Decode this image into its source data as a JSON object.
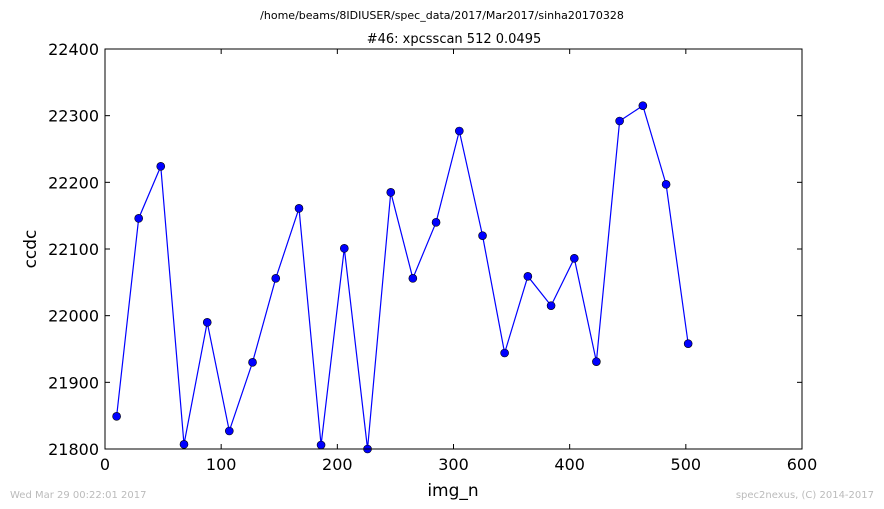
{
  "suptitle": "/home/beams/8IDIUSER/spec_data/2017/Mar2017/sinha20170328",
  "footer": {
    "left": "Wed Mar 29 00:22:01 2017",
    "right": "spec2nexus, (C) 2014-2017"
  },
  "chart_data": {
    "type": "line",
    "title": "#46: xpcsscan 512 0.0495",
    "xlabel": "img_n",
    "ylabel": "ccdc",
    "xlim": [
      0,
      600
    ],
    "ylim": [
      21800,
      22400
    ],
    "xticks": [
      0,
      100,
      200,
      300,
      400,
      500,
      600
    ],
    "yticks": [
      21800,
      21900,
      22000,
      22100,
      22200,
      22300,
      22400
    ],
    "grid": false,
    "color": "#0000ff",
    "marker": "circle",
    "series": [
      {
        "x": [
          10,
          29,
          48,
          68,
          88,
          107,
          127,
          147,
          167,
          186,
          206,
          226,
          246,
          265,
          285,
          305,
          325,
          344,
          364,
          384,
          404,
          423,
          443,
          463,
          483,
          502
        ],
        "y": [
          21849,
          22146,
          22224,
          21807,
          21990,
          21827,
          21930,
          22056,
          22161,
          21806,
          22101,
          21800,
          22185,
          22056,
          22140,
          22277,
          22120,
          21944,
          22059,
          22015,
          22086,
          21931,
          22292,
          22315,
          22197,
          21958
        ]
      }
    ]
  }
}
